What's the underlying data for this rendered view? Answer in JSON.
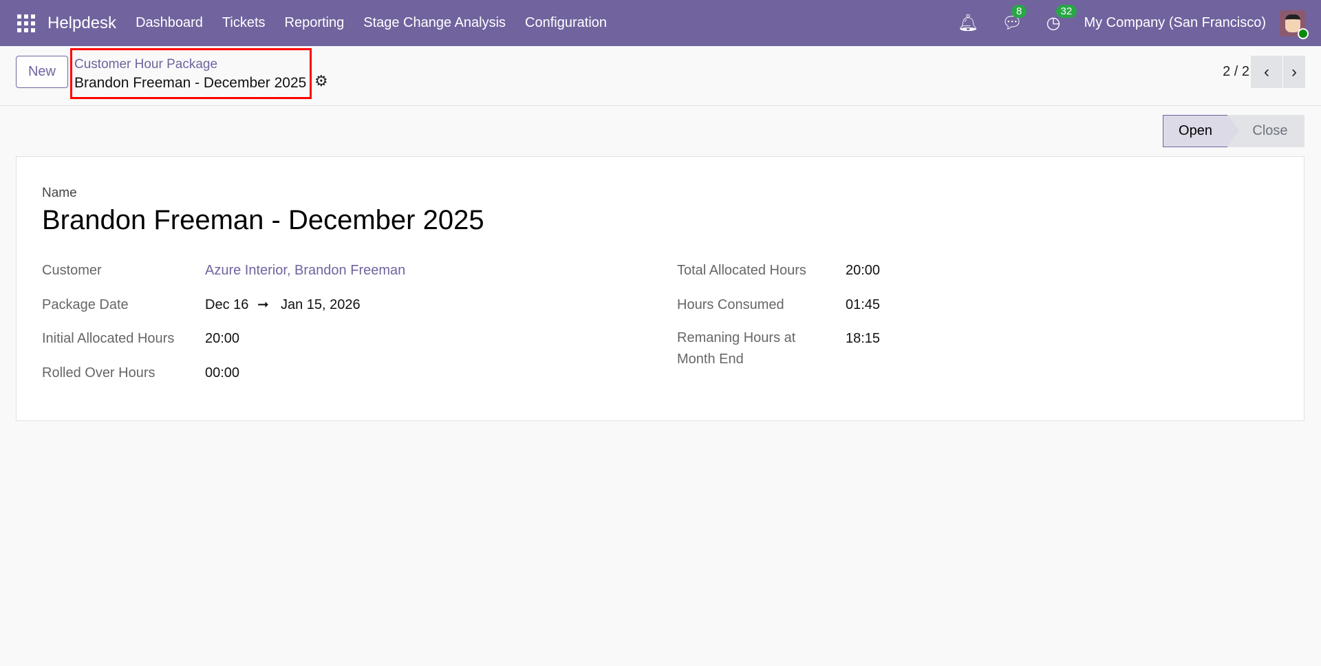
{
  "navbar": {
    "app": "Helpdesk",
    "menus": [
      "Dashboard",
      "Tickets",
      "Reporting",
      "Stage Change Analysis",
      "Configuration"
    ],
    "messages_count": "8",
    "activities_count": "32",
    "company": "My Company (San Francisco)"
  },
  "control": {
    "new_label": "New",
    "breadcrumb_parent": "Customer Hour Package",
    "breadcrumb_current": "Brandon Freeman - December 2025",
    "pager": "2 / 2"
  },
  "status": {
    "stages": [
      "Open",
      "Close"
    ],
    "active": "Open"
  },
  "form": {
    "name_label": "Name",
    "name": "Brandon Freeman - December 2025",
    "left": [
      {
        "label": "Customer",
        "value": "Azure Interior, Brandon Freeman"
      },
      {
        "label": "Package Date",
        "start": "Dec 16",
        "arrow": "➞",
        "end": "Jan 15, 2026"
      },
      {
        "label": "Initial Allocated Hours",
        "value": "20:00"
      },
      {
        "label": "Rolled Over Hours",
        "value": "00:00"
      }
    ],
    "right": [
      {
        "label": "Total Allocated Hours",
        "value": "20:00"
      },
      {
        "label": "Hours Consumed",
        "value": "01:45"
      },
      {
        "label": "Remaning Hours at Month End",
        "value": "18:15"
      }
    ]
  },
  "colors": {
    "brand": "#71639e",
    "highlight": "#ff0000"
  }
}
